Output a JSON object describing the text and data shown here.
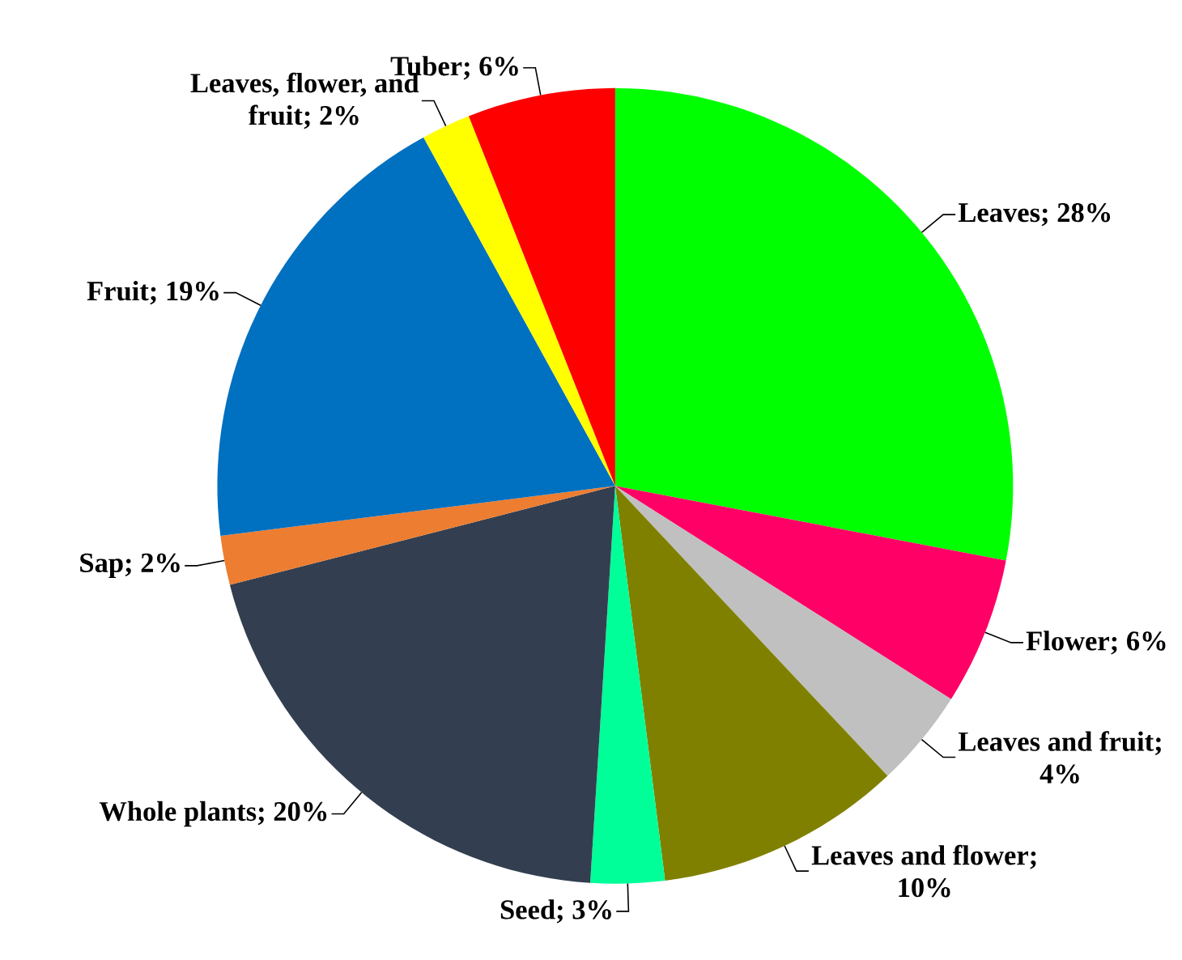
{
  "chart_data": {
    "type": "pie",
    "categories": [
      "Leaves; 28%",
      "Flower; 6%",
      "Leaves and fruit; 4%",
      "Leaves and flower; 10%",
      "Seed; 3%",
      "Whole plants; 20%",
      "Sap; 2%",
      "Fruit; 19%",
      "Leaves, flower, and fruit; 2%",
      "Tuber; 6%"
    ],
    "values": [
      28,
      6,
      4,
      10,
      3,
      20,
      2,
      19,
      2,
      6
    ],
    "colors": [
      "#00ff00",
      "#ff0066",
      "#c0c0c0",
      "#808000",
      "#00ff99",
      "#333f50",
      "#ed7d31",
      "#0070c0",
      "#ffff00",
      "#ff0000"
    ]
  }
}
